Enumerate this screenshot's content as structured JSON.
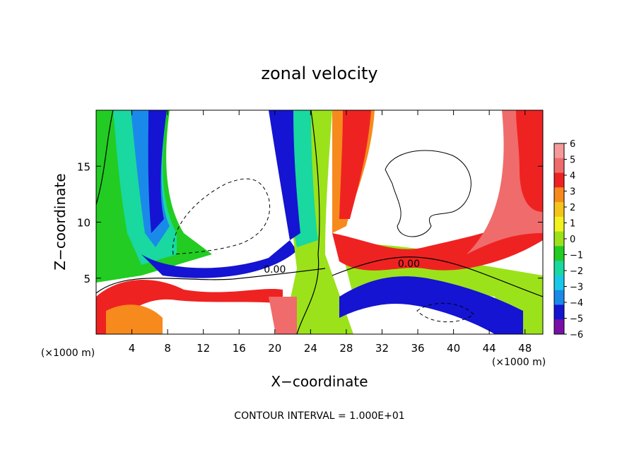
{
  "chart_data": {
    "type": "heatmap",
    "title": "zonal velocity",
    "xlabel": "X−coordinate",
    "ylabel": "Z−coordinate",
    "x_unit_label": "(×1000 m)",
    "y_unit_label": "(×1000 m)",
    "footer": "CONTOUR INTERVAL = 1.000E+01",
    "xlim": [
      0,
      50
    ],
    "ylim": [
      0,
      20
    ],
    "x_ticks": [
      4,
      8,
      12,
      16,
      20,
      24,
      28,
      32,
      36,
      40,
      44,
      48
    ],
    "y_ticks": [
      5,
      10,
      15
    ],
    "contour_labels": [
      {
        "text": "0.00",
        "x": 20,
        "y": 5.5
      },
      {
        "text": "0.00",
        "x": 35,
        "y": 6.0
      }
    ],
    "colorbar": {
      "min": -6,
      "max": 6,
      "labels": [
        "6",
        "5",
        "4",
        "3",
        "2",
        "1",
        "0",
        "−1",
        "−2",
        "−3",
        "−4",
        "−5",
        "−6"
      ],
      "colors": [
        "#f59a9a",
        "#f06b6b",
        "#ef2222",
        "#f78a1d",
        "#f5c41a",
        "#f2f21e",
        "#9be21b",
        "#22cc22",
        "#19d8a0",
        "#19c8e8",
        "#1a8aea",
        "#1414d2",
        "#7a0fa8"
      ]
    },
    "grid": false
  }
}
